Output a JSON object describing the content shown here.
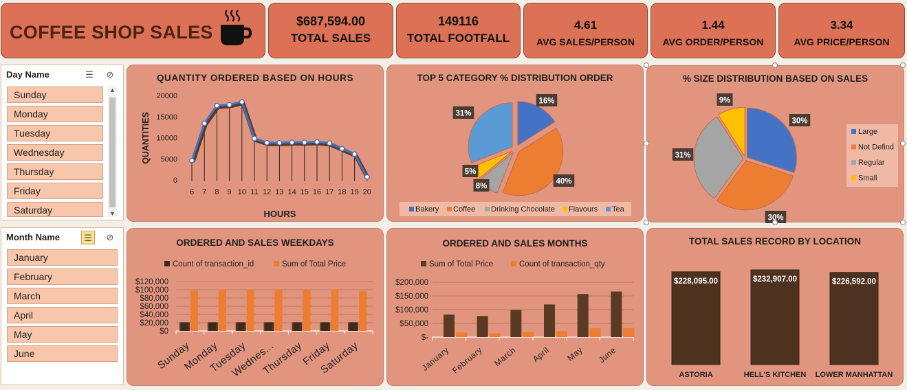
{
  "header": {
    "title": "COFFEE SHOP SALES",
    "icon": "coffee-cup-icon",
    "kpis": [
      {
        "value": "$687,594.00",
        "label": "TOTAL SALES"
      },
      {
        "value": "149116",
        "label": "TOTAL FOOTFALL"
      },
      {
        "value": "4.61",
        "label": "AVG SALES/PERSON"
      },
      {
        "value": "1.44",
        "label": "AVG ORDER/PERSON"
      },
      {
        "value": "3.34",
        "label": "AVG PRICE/PERSON"
      }
    ]
  },
  "day_slicer": {
    "title": "Day Name",
    "items": [
      "Sunday",
      "Monday",
      "Tuesday",
      "Wednesday",
      "Thursday",
      "Friday",
      "Saturday"
    ]
  },
  "month_slicer": {
    "title": "Month Name",
    "items": [
      "January",
      "February",
      "March",
      "April",
      "May",
      "June"
    ]
  },
  "colors": {
    "header_bg": "#dd7156",
    "panel_bg": "#e2957e",
    "slicer_item": "#f7c6ab",
    "dark_brown": "#5a3a22",
    "orange": "#ed7d31",
    "line_blue": "#4472c4",
    "bakery": "#4472c4",
    "coffee": "#ed7d31",
    "drinking_chocolate": "#a5a5a5",
    "flavours": "#ffc000",
    "tea": "#5b9bd5"
  },
  "chart_data": [
    {
      "id": "hours",
      "type": "line",
      "title": "QUANTITY ORDERED BASED ON HOURS",
      "xlabel": "HOURS",
      "ylabel": "QUANTITIES",
      "x": [
        "6",
        "7",
        "8",
        "9",
        "10",
        "11",
        "12",
        "13",
        "14",
        "15",
        "16",
        "17",
        "18",
        "19",
        "20"
      ],
      "y_ticks": [
        "20000",
        "15000",
        "10000",
        "5000",
        "0"
      ],
      "ylim": [
        0,
        20000
      ],
      "values": [
        4600,
        13400,
        17600,
        17800,
        18500,
        9800,
        8800,
        8800,
        8900,
        8900,
        9000,
        8700,
        7400,
        6100,
        700
      ]
    },
    {
      "id": "category",
      "type": "pie",
      "title": "TOP 5 CATEGORY % DISTRIBUTION ORDER",
      "slices": [
        {
          "name": "Bakery",
          "value": 16,
          "label": "16%"
        },
        {
          "name": "Coffee",
          "value": 40,
          "label": "40%"
        },
        {
          "name": "Drinking Chocolate",
          "value": 8,
          "label": "8%"
        },
        {
          "name": "Flavours",
          "value": 5,
          "label": "5%"
        },
        {
          "name": "Tea",
          "value": 31,
          "label": "31%"
        }
      ],
      "legend": "bottom"
    },
    {
      "id": "size",
      "type": "pie",
      "title": "% SIZE DISTRIBUTION BASED ON SALES",
      "slices": [
        {
          "name": "Large",
          "value": 30,
          "label": "30%"
        },
        {
          "name": "Not Defind",
          "value": 30,
          "label": "30%"
        },
        {
          "name": "Regular",
          "value": 31,
          "label": "31%"
        },
        {
          "name": "Small",
          "value": 9,
          "label": "9%"
        }
      ],
      "legend": "right"
    },
    {
      "id": "weekdays",
      "type": "bar",
      "title": "ORDERED AND SALES WEEKDAYS",
      "categories": [
        "Sunday",
        "Monday",
        "Tuesday",
        "Wednes...",
        "Thursday",
        "Friday",
        "Saturday"
      ],
      "y_ticks": [
        "$120,000",
        "$100,000",
        "$80,000",
        "$60,000",
        "$40,000",
        "$20,000",
        "$0"
      ],
      "ylim": [
        0,
        120000
      ],
      "series": [
        {
          "name": "Count of transaction_id",
          "values": [
            21000,
            21000,
            21000,
            21000,
            21000,
            21000,
            21000
          ]
        },
        {
          "name": "Sum of Total Price",
          "values": [
            98000,
            100500,
            99500,
            100000,
            99500,
            100500,
            96000
          ]
        }
      ],
      "legend": "top"
    },
    {
      "id": "months",
      "type": "bar",
      "title": "ORDERED AND SALES MONTHS",
      "categories": [
        "January",
        "February",
        "March",
        "April",
        "May",
        "June"
      ],
      "y_ticks": [
        "$200,000",
        "$150,000",
        "$100,000",
        "$50,000",
        "$-"
      ],
      "ylim": [
        0,
        200000
      ],
      "series": [
        {
          "name": "Sum of Total Price",
          "values": [
            82000,
            77000,
            99000,
            119000,
            157000,
            166000
          ]
        },
        {
          "name": "Count of transaction_qty",
          "values": [
            17000,
            14000,
            19000,
            22000,
            32000,
            33000
          ]
        }
      ],
      "legend": "top"
    },
    {
      "id": "location",
      "type": "bar",
      "title": "TOTAL SALES RECORD BY LOCATION",
      "categories": [
        "ASTORIA",
        "HELL'S KITCHEN",
        "LOWER MANHATTAN"
      ],
      "values": [
        228095,
        232907,
        226592
      ],
      "labels": [
        "$228,095.00",
        "$232,907.00",
        "$226,592.00"
      ]
    }
  ]
}
